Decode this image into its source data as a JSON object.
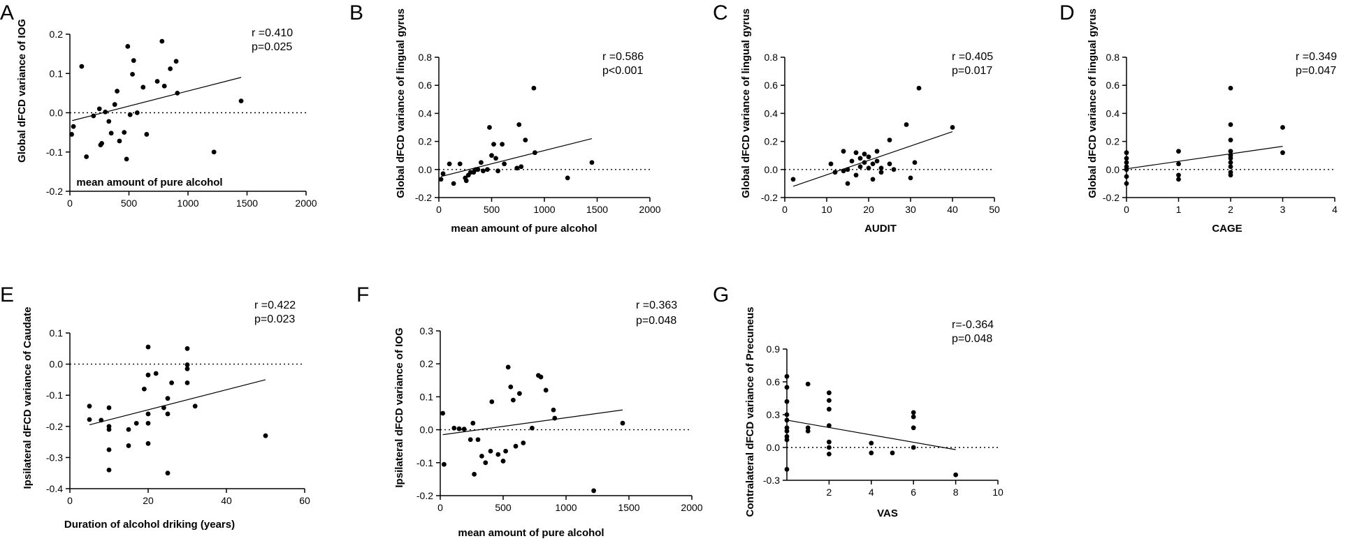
{
  "figure": {
    "description": "Seven scatter plots (A–G) with regression lines"
  },
  "chart_data": [
    {
      "id": "A",
      "type": "scatter",
      "letter": "A",
      "xlabel": "mean amount of pure alcohol",
      "ylabel": "Global dFCD variance of IOG",
      "xlim": [
        0,
        2000
      ],
      "ylim": [
        -0.2,
        0.2
      ],
      "xticks": [
        "0",
        "500",
        "1000",
        "1500",
        "2000"
      ],
      "yticks": [
        "-0.2",
        "-0.1",
        "0.0",
        "0.1",
        "0.2"
      ],
      "xtick_values": [
        0,
        500,
        1000,
        1500,
        2000
      ],
      "ytick_values": [
        -0.2,
        -0.1,
        0,
        0.1,
        0.2
      ],
      "stats": [
        "r =0.410",
        "p=0.025"
      ],
      "ref_line_y": 0,
      "fit": {
        "x": [
          20,
          1450
        ],
        "y": [
          -0.02,
          0.09
        ]
      },
      "points": [
        [
          15,
          -0.055
        ],
        [
          30,
          -0.035
        ],
        [
          100,
          0.118
        ],
        [
          140,
          -0.112
        ],
        [
          200,
          -0.008
        ],
        [
          250,
          0.01
        ],
        [
          260,
          -0.082
        ],
        [
          270,
          -0.078
        ],
        [
          300,
          0.002
        ],
        [
          330,
          -0.022
        ],
        [
          350,
          -0.052
        ],
        [
          380,
          0.021
        ],
        [
          400,
          0.055
        ],
        [
          420,
          -0.072
        ],
        [
          460,
          -0.05
        ],
        [
          480,
          -0.118
        ],
        [
          490,
          0.169
        ],
        [
          510,
          -0.005
        ],
        [
          530,
          0.098
        ],
        [
          540,
          0.133
        ],
        [
          570,
          0.0
        ],
        [
          620,
          0.065
        ],
        [
          650,
          -0.055
        ],
        [
          740,
          0.08
        ],
        [
          780,
          0.182
        ],
        [
          800,
          0.068
        ],
        [
          850,
          0.112
        ],
        [
          900,
          0.131
        ],
        [
          910,
          0.05
        ],
        [
          1220,
          -0.1
        ],
        [
          1450,
          0.03
        ]
      ]
    },
    {
      "id": "B",
      "type": "scatter",
      "letter": "B",
      "xlabel": "mean amount of pure alcohol",
      "ylabel": "Global dFCD variance of lingual gyrus",
      "xlim": [
        0,
        2000
      ],
      "ylim": [
        -0.2,
        0.8
      ],
      "xticks": [
        "0",
        "500",
        "1000",
        "1500",
        "2000"
      ],
      "yticks": [
        "-0.2",
        "0.0",
        "0.2",
        "0.4",
        "0.6",
        "0.8"
      ],
      "xtick_values": [
        0,
        500,
        1000,
        1500,
        2000
      ],
      "ytick_values": [
        -0.2,
        0,
        0.2,
        0.4,
        0.6,
        0.8
      ],
      "stats": [
        "r =0.586",
        "p<0.001"
      ],
      "ref_line_y": 0,
      "fit": {
        "x": [
          20,
          1450
        ],
        "y": [
          -0.05,
          0.22
        ]
      },
      "points": [
        [
          20,
          -0.07
        ],
        [
          40,
          -0.03
        ],
        [
          100,
          0.04
        ],
        [
          140,
          -0.1
        ],
        [
          200,
          0.04
        ],
        [
          250,
          -0.06
        ],
        [
          260,
          -0.08
        ],
        [
          280,
          -0.04
        ],
        [
          300,
          -0.02
        ],
        [
          330,
          -0.02
        ],
        [
          350,
          0.0
        ],
        [
          370,
          0.0
        ],
        [
          400,
          0.05
        ],
        [
          420,
          -0.01
        ],
        [
          460,
          0.0
        ],
        [
          480,
          0.3
        ],
        [
          500,
          0.1
        ],
        [
          520,
          0.18
        ],
        [
          540,
          0.08
        ],
        [
          560,
          -0.01
        ],
        [
          600,
          0.18
        ],
        [
          620,
          0.04
        ],
        [
          740,
          0.01
        ],
        [
          760,
          0.32
        ],
        [
          780,
          0.02
        ],
        [
          820,
          0.21
        ],
        [
          900,
          0.58
        ],
        [
          910,
          0.12
        ],
        [
          1220,
          -0.06
        ],
        [
          1450,
          0.05
        ]
      ]
    },
    {
      "id": "C",
      "type": "scatter",
      "letter": "C",
      "xlabel": "AUDIT",
      "ylabel": "Global dFCD variance of lingual gyrus",
      "xlim": [
        0,
        50
      ],
      "ylim": [
        -0.2,
        0.8
      ],
      "xticks": [
        "0",
        "10",
        "20",
        "30",
        "40",
        "50"
      ],
      "yticks": [
        "-0.2",
        "0.0",
        "0.2",
        "0.4",
        "0.6",
        "0.8"
      ],
      "xtick_values": [
        0,
        10,
        20,
        30,
        40,
        50
      ],
      "ytick_values": [
        -0.2,
        0,
        0.2,
        0.4,
        0.6,
        0.8
      ],
      "stats": [
        "r =0.405",
        "p=0.017"
      ],
      "ref_line_y": 0,
      "fit": {
        "x": [
          2,
          40
        ],
        "y": [
          -0.12,
          0.27
        ]
      },
      "points": [
        [
          2,
          -0.07
        ],
        [
          11,
          0.04
        ],
        [
          12,
          -0.02
        ],
        [
          14,
          -0.01
        ],
        [
          14,
          0.13
        ],
        [
          15,
          -0.1
        ],
        [
          15,
          0.0
        ],
        [
          16,
          0.06
        ],
        [
          17,
          0.12
        ],
        [
          17,
          -0.04
        ],
        [
          18,
          0.08
        ],
        [
          18,
          0.02
        ],
        [
          19,
          0.11
        ],
        [
          19,
          0.05
        ],
        [
          20,
          0.09
        ],
        [
          20,
          0.01
        ],
        [
          21,
          -0.07
        ],
        [
          21,
          0.04
        ],
        [
          22,
          0.13
        ],
        [
          22,
          0.06
        ],
        [
          23,
          -0.02
        ],
        [
          23,
          0.01
        ],
        [
          25,
          0.21
        ],
        [
          25,
          0.04
        ],
        [
          26,
          0.0
        ],
        [
          29,
          0.32
        ],
        [
          30,
          -0.06
        ],
        [
          31,
          0.05
        ],
        [
          32,
          0.58
        ],
        [
          40,
          0.3
        ]
      ]
    },
    {
      "id": "D",
      "type": "scatter",
      "letter": "D",
      "xlabel": "CAGE",
      "ylabel": "Global dFCD variance of lingual gyrus",
      "xlim": [
        0,
        4
      ],
      "ylim": [
        -0.2,
        0.8
      ],
      "xticks": [
        "0",
        "1",
        "2",
        "3",
        "4"
      ],
      "yticks": [
        "-0.2",
        "0.0",
        "0.2",
        "0.4",
        "0.6",
        "0.8"
      ],
      "xtick_values": [
        0,
        1,
        2,
        3,
        4
      ],
      "ytick_values": [
        -0.2,
        0,
        0.2,
        0.4,
        0.6,
        0.8
      ],
      "stats": [
        "r =0.349",
        "p=0.047"
      ],
      "ref_line_y": 0,
      "fit": {
        "x": [
          0,
          3
        ],
        "y": [
          0.005,
          0.165
        ]
      },
      "points": [
        [
          0,
          -0.1
        ],
        [
          0,
          -0.05
        ],
        [
          0,
          0.0
        ],
        [
          0,
          0.02
        ],
        [
          0,
          0.05
        ],
        [
          0,
          0.08
        ],
        [
          0,
          0.12
        ],
        [
          1,
          -0.07
        ],
        [
          1,
          -0.04
        ],
        [
          1,
          0.04
        ],
        [
          1,
          0.13
        ],
        [
          2,
          -0.04
        ],
        [
          2,
          -0.02
        ],
        [
          2,
          0.02
        ],
        [
          2,
          0.05
        ],
        [
          2,
          0.08
        ],
        [
          2,
          0.1
        ],
        [
          2,
          0.13
        ],
        [
          2,
          0.21
        ],
        [
          2,
          0.32
        ],
        [
          2,
          0.58
        ],
        [
          3,
          0.12
        ],
        [
          3,
          0.3
        ]
      ]
    },
    {
      "id": "E",
      "type": "scatter",
      "letter": "E",
      "xlabel": "Duration of alcohol driking (years)",
      "ylabel": "Ipsilateral dFCD variance of Caudate",
      "xlim": [
        0,
        60
      ],
      "ylim": [
        -0.4,
        0.1
      ],
      "xticks": [
        "0",
        "20",
        "40",
        "60"
      ],
      "yticks": [
        "-0.4",
        "-0.3",
        "-0.2",
        "-0.1",
        "0.0",
        "0.1"
      ],
      "xtick_values": [
        0,
        20,
        40,
        60
      ],
      "ytick_values": [
        -0.4,
        -0.3,
        -0.2,
        -0.1,
        0,
        0.1
      ],
      "stats": [
        "r =0.422",
        "p=0.023"
      ],
      "ref_line_y": 0,
      "fit": {
        "x": [
          5,
          50
        ],
        "y": [
          -0.195,
          -0.05
        ]
      },
      "points": [
        [
          5,
          -0.135
        ],
        [
          5,
          -0.178
        ],
        [
          8,
          -0.18
        ],
        [
          10,
          -0.14
        ],
        [
          10,
          -0.2
        ],
        [
          10,
          -0.21
        ],
        [
          10,
          -0.275
        ],
        [
          10,
          -0.34
        ],
        [
          15,
          -0.21
        ],
        [
          15,
          -0.262
        ],
        [
          17,
          -0.19
        ],
        [
          19,
          -0.08
        ],
        [
          20,
          -0.035
        ],
        [
          20,
          0.055
        ],
        [
          20,
          -0.16
        ],
        [
          20,
          -0.19
        ],
        [
          20,
          -0.255
        ],
        [
          22,
          -0.03
        ],
        [
          24,
          -0.14
        ],
        [
          25,
          -0.11
        ],
        [
          25,
          -0.16
        ],
        [
          25,
          -0.35
        ],
        [
          26,
          -0.06
        ],
        [
          30,
          0.05
        ],
        [
          30,
          -0.002
        ],
        [
          30,
          -0.015
        ],
        [
          30,
          -0.06
        ],
        [
          32,
          -0.135
        ],
        [
          50,
          -0.23
        ]
      ]
    },
    {
      "id": "F",
      "type": "scatter",
      "letter": "F",
      "xlabel": "mean amount of pure alcohol",
      "ylabel": "Ipsilateral dFCD variance of IOG",
      "xlim": [
        0,
        2000
      ],
      "ylim": [
        -0.2,
        0.3
      ],
      "xticks": [
        "0",
        "500",
        "1000",
        "1500",
        "2000"
      ],
      "yticks": [
        "-0.2",
        "-0.1",
        "0.0",
        "0.1",
        "0.2",
        "0.3"
      ],
      "xtick_values": [
        0,
        500,
        1000,
        1500,
        2000
      ],
      "ytick_values": [
        -0.2,
        -0.1,
        0,
        0.1,
        0.2,
        0.3
      ],
      "stats": [
        "r =0.363",
        "p=0.048"
      ],
      "ref_line_y": 0,
      "fit": {
        "x": [
          20,
          1450
        ],
        "y": [
          -0.015,
          0.06
        ]
      },
      "points": [
        [
          20,
          0.05
        ],
        [
          30,
          -0.105
        ],
        [
          110,
          0.005
        ],
        [
          150,
          0.003
        ],
        [
          190,
          0.002
        ],
        [
          240,
          -0.03
        ],
        [
          260,
          0.02
        ],
        [
          270,
          -0.135
        ],
        [
          300,
          -0.03
        ],
        [
          330,
          -0.08
        ],
        [
          360,
          -0.1
        ],
        [
          400,
          -0.065
        ],
        [
          410,
          0.085
        ],
        [
          460,
          -0.075
        ],
        [
          500,
          -0.095
        ],
        [
          520,
          -0.065
        ],
        [
          540,
          0.19
        ],
        [
          560,
          0.13
        ],
        [
          580,
          0.09
        ],
        [
          600,
          -0.05
        ],
        [
          630,
          0.11
        ],
        [
          660,
          -0.04
        ],
        [
          730,
          0.005
        ],
        [
          780,
          0.165
        ],
        [
          800,
          0.16
        ],
        [
          840,
          0.12
        ],
        [
          900,
          0.06
        ],
        [
          910,
          0.035
        ],
        [
          1220,
          -0.185
        ],
        [
          1450,
          0.02
        ]
      ]
    },
    {
      "id": "G",
      "type": "scatter",
      "letter": "G",
      "xlabel": "VAS",
      "ylabel": "Contralateral dFCD variance of Precuneus",
      "xlim": [
        0,
        10
      ],
      "ylim": [
        -0.3,
        0.9
      ],
      "xticks": [
        "2",
        "4",
        "6",
        "8",
        "10"
      ],
      "yticks": [
        "-0.3",
        "0.0",
        "0.3",
        "0.6",
        "0.9"
      ],
      "xtick_values": [
        2,
        4,
        6,
        8,
        10
      ],
      "ytick_values": [
        -0.3,
        0,
        0.3,
        0.6,
        0.9
      ],
      "stats": [
        "r=-0.364",
        "p=0.048"
      ],
      "ref_line_y": 0,
      "fit": {
        "x": [
          0,
          8
        ],
        "y": [
          0.25,
          -0.02
        ]
      },
      "points": [
        [
          0,
          -0.2
        ],
        [
          0,
          0.07
        ],
        [
          0,
          0.1
        ],
        [
          0,
          0.15
        ],
        [
          0,
          0.18
        ],
        [
          0,
          0.25
        ],
        [
          0,
          0.3
        ],
        [
          0,
          0.42
        ],
        [
          0,
          0.55
        ],
        [
          0,
          0.65
        ],
        [
          1,
          0.15
        ],
        [
          1,
          0.18
        ],
        [
          1,
          0.58
        ],
        [
          2,
          -0.06
        ],
        [
          2,
          0.0
        ],
        [
          2,
          0.05
        ],
        [
          2,
          0.2
        ],
        [
          2,
          0.35
        ],
        [
          2,
          0.43
        ],
        [
          2,
          0.5
        ],
        [
          4,
          -0.05
        ],
        [
          4,
          0.04
        ],
        [
          5,
          -0.05
        ],
        [
          6,
          0.0
        ],
        [
          6,
          0.18
        ],
        [
          6,
          0.28
        ],
        [
          6,
          0.32
        ],
        [
          8,
          -0.25
        ]
      ]
    }
  ]
}
